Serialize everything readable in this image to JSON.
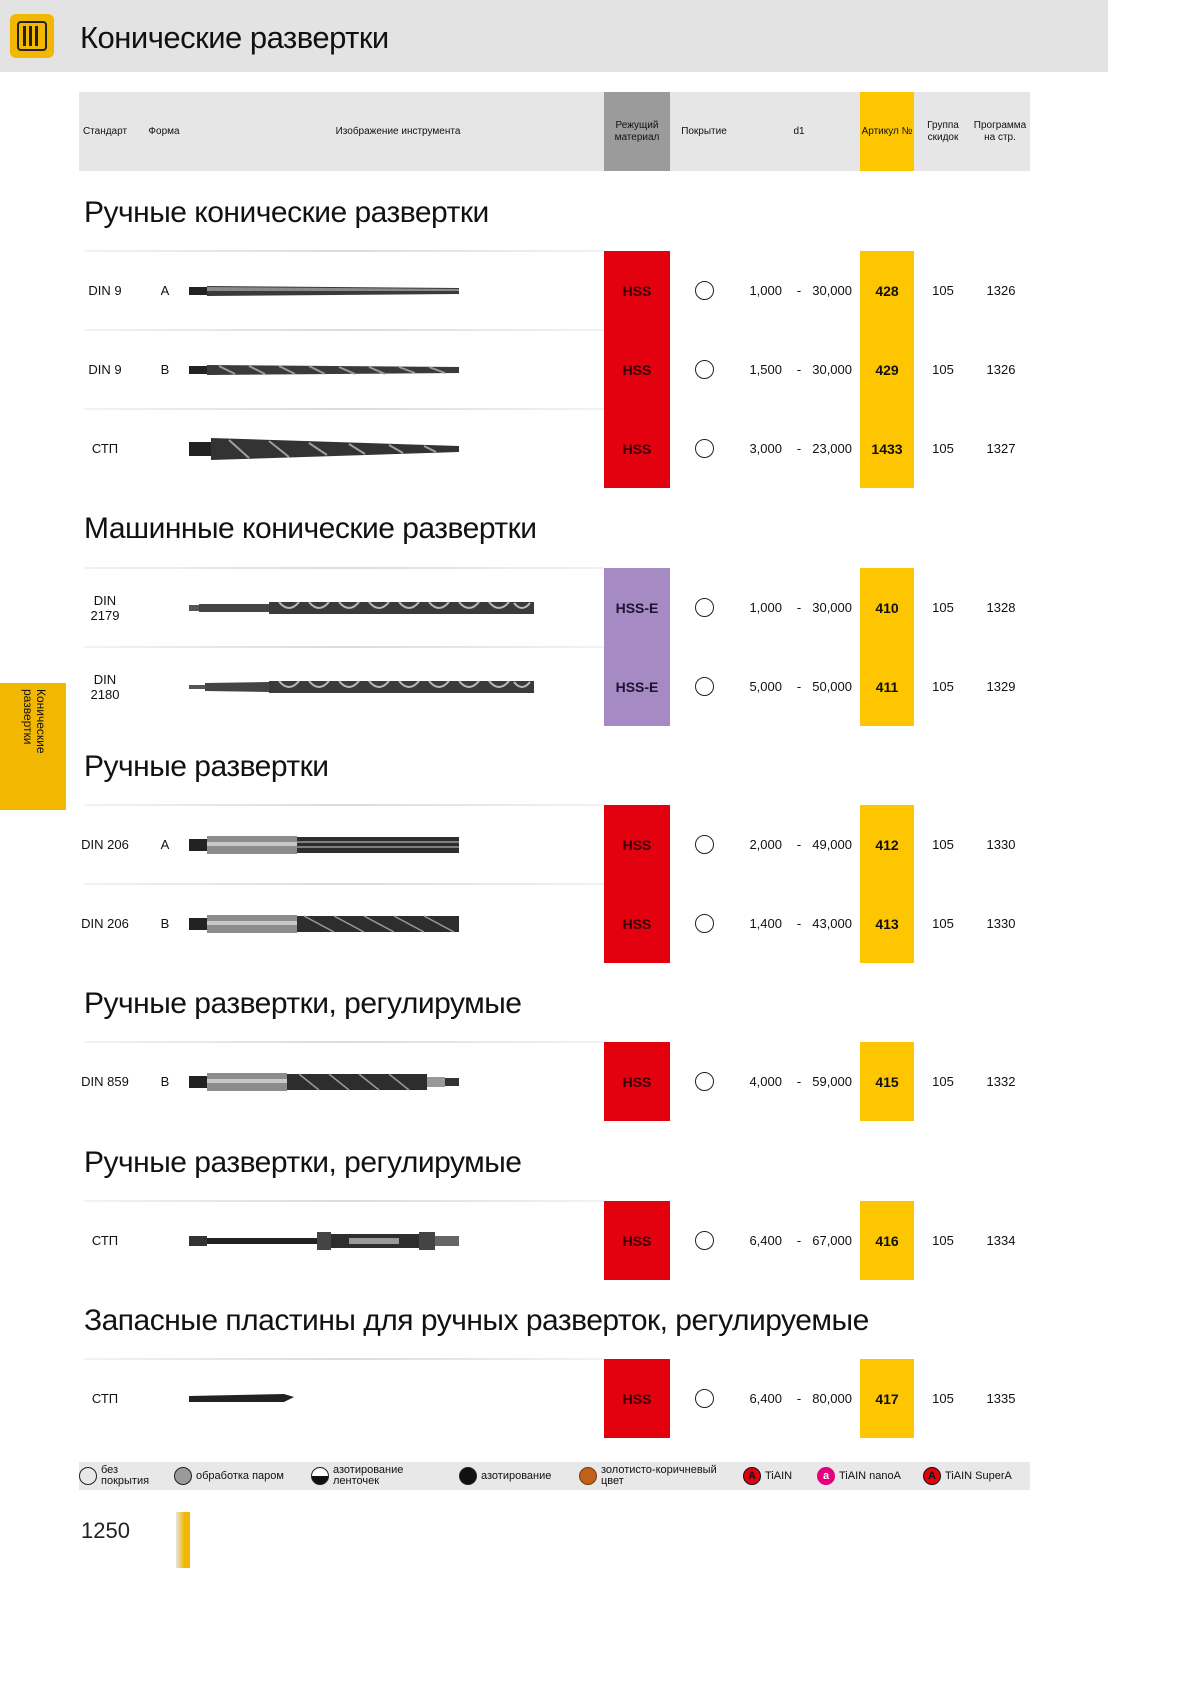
{
  "page_title": "Конические развертки",
  "side_tab": "Конические развертки",
  "page_number": "1250",
  "header": {
    "standard": "Стандарт",
    "form": "Форма",
    "image": "Изображение инструмента",
    "material": "Режущий материал",
    "coating": "Покрытие",
    "d1": "d1",
    "article": "Артикул №",
    "discount": "Группа скидок",
    "program": "Программа на стр."
  },
  "sections": [
    {
      "title": "Ручные конические развертки",
      "rows": [
        {
          "std": "DIN 9",
          "form": "A",
          "mat": "HSS",
          "dmin": "1,000",
          "dash": "-",
          "dmax": "30,000",
          "art": "428",
          "grp": "105",
          "prog": "1326",
          "tool": "taper-straight"
        },
        {
          "std": "DIN 9",
          "form": "B",
          "mat": "HSS",
          "dmin": "1,500",
          "dash": "-",
          "dmax": "30,000",
          "art": "429",
          "grp": "105",
          "prog": "1326",
          "tool": "taper-spiral"
        },
        {
          "std": "СТП",
          "form": "",
          "mat": "HSS",
          "dmin": "3,000",
          "dash": "-",
          "dmax": "23,000",
          "art": "1433",
          "grp": "105",
          "prog": "1327",
          "tool": "taper-thick"
        }
      ]
    },
    {
      "title": "Машинные конические развертки",
      "rows": [
        {
          "std": "DIN 2179",
          "form": "",
          "mat": "HSS-E",
          "dmin": "1,000",
          "dash": "-",
          "dmax": "30,000",
          "art": "410",
          "grp": "105",
          "prog": "1328",
          "tool": "machine"
        },
        {
          "std": "DIN 2180",
          "form": "",
          "mat": "HSS-E",
          "dmin": "5,000",
          "dash": "-",
          "dmax": "50,000",
          "art": "411",
          "grp": "105",
          "prog": "1329",
          "tool": "machine-morse"
        }
      ]
    },
    {
      "title": "Ручные развертки",
      "rows": [
        {
          "std": "DIN 206",
          "form": "A",
          "mat": "HSS",
          "dmin": "2,000",
          "dash": "-",
          "dmax": "49,000",
          "art": "412",
          "grp": "105",
          "prog": "1330",
          "tool": "hand-straight"
        },
        {
          "std": "DIN 206",
          "form": "B",
          "mat": "HSS",
          "dmin": "1,400",
          "dash": "-",
          "dmax": "43,000",
          "art": "413",
          "grp": "105",
          "prog": "1330",
          "tool": "hand-spiral"
        }
      ]
    },
    {
      "title": "Ручные развертки, регулирумые",
      "rows": [
        {
          "std": "DIN 859",
          "form": "B",
          "mat": "HSS",
          "dmin": "4,000",
          "dash": "-",
          "dmax": "59,000",
          "art": "415",
          "grp": "105",
          "prog": "1332",
          "tool": "adjustable-859"
        }
      ]
    },
    {
      "title": "Ручные развертки, регулирумые",
      "rows": [
        {
          "std": "СТП",
          "form": "",
          "mat": "HSS",
          "dmin": "6,400",
          "dash": "-",
          "dmax": "67,000",
          "art": "416",
          "grp": "105",
          "prog": "1334",
          "tool": "adjustable-stp"
        }
      ]
    },
    {
      "title": "Запасные пластины для ручных разверток, регулируемые",
      "rows": [
        {
          "std": "СТП",
          "form": "",
          "mat": "HSS",
          "dmin": "6,400",
          "dash": "-",
          "dmax": "80,000",
          "art": "417",
          "grp": "105",
          "prog": "1335",
          "tool": "blade"
        }
      ]
    }
  ],
  "legend": [
    {
      "label": "без покрытия",
      "icon": "blank-circle-icon"
    },
    {
      "label": "обработка паром",
      "icon": "gray-circle-icon"
    },
    {
      "label": "азотирование ленточек",
      "icon": "half-black-circle-icon"
    },
    {
      "label": "азотирование",
      "icon": "black-circle-icon"
    },
    {
      "label": "золотисто-коричневый цвет",
      "icon": "brown-circle-icon"
    },
    {
      "label": "TiAIN",
      "icon": "tialn-icon",
      "glyph": "A"
    },
    {
      "label": "TiAIN nanoA",
      "icon": "tialn-nano-icon",
      "glyph": "a"
    },
    {
      "label": "TiAIN SuperA",
      "icon": "tialn-super-icon",
      "glyph": "A"
    }
  ],
  "colors": {
    "hss": "#e3000f",
    "hss_e": "#a58ac4",
    "article": "#fdc600",
    "brand": "#f2b700"
  }
}
